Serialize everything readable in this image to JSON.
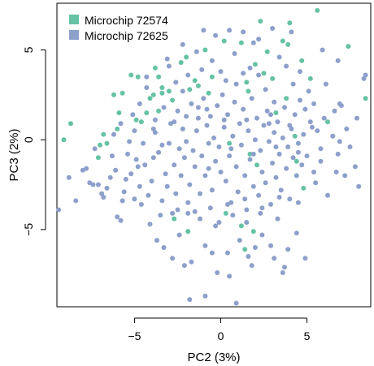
{
  "chart_data": {
    "type": "scatter",
    "xlabel": "PC2 (3%)",
    "ylabel": "PC3 (2%)",
    "xlim": [
      -9.5,
      8.7
    ],
    "ylim": [
      -9.3,
      7.6
    ],
    "xticks": [
      -5,
      0,
      5
    ],
    "xtick_labels": [
      "−5",
      "0",
      "5"
    ],
    "yticks": [
      -5,
      0,
      5
    ],
    "ytick_labels": [
      "−5",
      "0",
      "5"
    ],
    "legend_position": "top-left",
    "series": [
      {
        "name": "Microchip 72574",
        "color": "#66c2a5",
        "points": [
          [
            -9.1,
            0.0
          ],
          [
            -8.7,
            0.9
          ],
          [
            -7.0,
            -0.3
          ],
          [
            -6.6,
            -0.2
          ],
          [
            -7.1,
            -1.0
          ],
          [
            -6.8,
            0.3
          ],
          [
            -6.0,
            0.6
          ],
          [
            -5.9,
            1.5
          ],
          [
            -6.2,
            2.5
          ],
          [
            -5.7,
            2.6
          ],
          [
            -5.2,
            3.6
          ],
          [
            -4.8,
            3.5
          ],
          [
            -4.6,
            1.0
          ],
          [
            -4.3,
            1.5
          ],
          [
            -4.1,
            2.3
          ],
          [
            -3.9,
            2.5
          ],
          [
            -3.8,
            4.0
          ],
          [
            -3.6,
            3.5
          ],
          [
            -3.4,
            2.6
          ],
          [
            -3.6,
            1.6
          ],
          [
            -3.0,
            2.7
          ],
          [
            -2.8,
            2.2
          ],
          [
            -2.3,
            4.3
          ],
          [
            -2.0,
            4.6
          ],
          [
            -1.8,
            2.8
          ],
          [
            -1.5,
            3.3
          ],
          [
            -1.3,
            3.0
          ],
          [
            -0.9,
            5.0
          ],
          [
            -0.5,
            3.5
          ],
          [
            -0.7,
            2.6
          ],
          [
            0.2,
            5.5
          ],
          [
            1.2,
            5.4
          ],
          [
            1.5,
            3.2
          ],
          [
            1.6,
            2.7
          ],
          [
            2.0,
            4.2
          ],
          [
            2.3,
            6.6
          ],
          [
            2.5,
            3.7
          ],
          [
            3.0,
            3.4
          ],
          [
            3.2,
            1.5
          ],
          [
            3.6,
            5.5
          ],
          [
            3.9,
            5.3
          ],
          [
            4.0,
            6.5
          ],
          [
            4.7,
            4.4
          ],
          [
            5.2,
            3.4
          ],
          [
            5.6,
            7.2
          ],
          [
            4.3,
            0.2
          ],
          [
            4.4,
            -1.2
          ],
          [
            4.8,
            -2.7
          ],
          [
            6.2,
            1.0
          ],
          [
            7.4,
            5.2
          ],
          [
            8.4,
            2.3
          ],
          [
            2.1,
            -1.4
          ],
          [
            1.7,
            -0.8
          ],
          [
            0.5,
            -0.2
          ],
          [
            -2.7,
            -4.4
          ],
          [
            0.3,
            -4.1
          ],
          [
            1.2,
            -4.8
          ],
          [
            1.9,
            -5.1
          ],
          [
            1.4,
            -6.1
          ],
          [
            -1.9,
            -5.1
          ],
          [
            -3.4,
            2.9
          ],
          [
            -4.9,
            1.1
          ],
          [
            2.7,
            4.9
          ],
          [
            3.8,
            2.3
          ]
        ]
      },
      {
        "name": "Microchip 72625",
        "color": "#8da0cb",
        "points": [
          [
            -9.4,
            -3.9
          ],
          [
            -8.4,
            -3.4
          ],
          [
            -7.8,
            -1.6
          ],
          [
            -7.4,
            -2.5
          ],
          [
            -7.1,
            -2.5
          ],
          [
            -6.8,
            -3.2
          ],
          [
            -6.4,
            -2.1
          ],
          [
            -6.1,
            -1.7
          ],
          [
            -6.0,
            -4.3
          ],
          [
            -5.7,
            -3.4
          ],
          [
            -5.5,
            -2.2
          ],
          [
            -5.4,
            -0.8
          ],
          [
            -5.2,
            -1.9
          ],
          [
            -5.0,
            -3.3
          ],
          [
            -4.8,
            -1.5
          ],
          [
            -4.7,
            -2.6
          ],
          [
            -4.5,
            -0.2
          ],
          [
            -4.4,
            -1.4
          ],
          [
            -4.2,
            -3.1
          ],
          [
            -4.0,
            -2.3
          ],
          [
            -3.9,
            -1.0
          ],
          [
            -3.8,
            0.4
          ],
          [
            -3.6,
            -0.7
          ],
          [
            -3.4,
            -3.4
          ],
          [
            -3.2,
            -1.9
          ],
          [
            -3.1,
            -2.6
          ],
          [
            -3.0,
            -0.2
          ],
          [
            -2.9,
            0.9
          ],
          [
            -2.8,
            -4.1
          ],
          [
            -2.7,
            -1.4
          ],
          [
            -2.6,
            -3.0
          ],
          [
            -2.5,
            1.6
          ],
          [
            -2.4,
            -0.5
          ],
          [
            -2.3,
            -2.0
          ],
          [
            -2.2,
            0.6
          ],
          [
            -2.1,
            -1.0
          ],
          [
            -2.0,
            1.3
          ],
          [
            -1.9,
            -3.5
          ],
          [
            -1.8,
            -2.5
          ],
          [
            -1.7,
            2.0
          ],
          [
            -1.6,
            -0.6
          ],
          [
            -1.5,
            -1.5
          ],
          [
            -1.4,
            0.5
          ],
          [
            -1.3,
            1.8
          ],
          [
            -1.2,
            -3.0
          ],
          [
            -1.1,
            -0.9
          ],
          [
            -1.0,
            2.3
          ],
          [
            -0.9,
            -2.0
          ],
          [
            -0.8,
            0.8
          ],
          [
            -0.7,
            -1.6
          ],
          [
            -0.6,
            1.3
          ],
          [
            -0.5,
            -2.8
          ],
          [
            -0.4,
            0.1
          ],
          [
            -0.3,
            -1.2
          ],
          [
            -0.2,
            1.9
          ],
          [
            -0.1,
            -0.4
          ],
          [
            0.0,
            -1.8
          ],
          [
            0.1,
            2.5
          ],
          [
            0.2,
            0.7
          ],
          [
            0.3,
            -2.3
          ],
          [
            0.4,
            1.4
          ],
          [
            0.5,
            -0.9
          ],
          [
            0.6,
            -3.5
          ],
          [
            0.7,
            0.2
          ],
          [
            0.8,
            2.1
          ],
          [
            0.9,
            -1.5
          ],
          [
            1.0,
            -2.9
          ],
          [
            1.1,
            0.9
          ],
          [
            1.2,
            -0.3
          ],
          [
            1.3,
            1.7
          ],
          [
            1.4,
            -2.0
          ],
          [
            1.5,
            -3.9
          ],
          [
            1.6,
            0.5
          ],
          [
            1.7,
            -1.1
          ],
          [
            1.8,
            2.3
          ],
          [
            1.9,
            -2.6
          ],
          [
            2.0,
            0.0
          ],
          [
            2.1,
            1.2
          ],
          [
            2.2,
            -3.1
          ],
          [
            2.3,
            -0.6
          ],
          [
            2.4,
            -1.8
          ],
          [
            2.5,
            0.8
          ],
          [
            2.6,
            -2.4
          ],
          [
            2.7,
            1.6
          ],
          [
            2.8,
            -0.1
          ],
          [
            2.9,
            -3.6
          ],
          [
            3.0,
            -1.3
          ],
          [
            3.1,
            0.4
          ],
          [
            3.2,
            -2.1
          ],
          [
            3.3,
            1.0
          ],
          [
            3.4,
            -0.8
          ],
          [
            3.5,
            -2.8
          ],
          [
            3.6,
            0.1
          ],
          [
            3.7,
            1.8
          ],
          [
            3.8,
            -1.6
          ],
          [
            3.9,
            -0.4
          ],
          [
            4.0,
            -3.3
          ],
          [
            4.1,
            0.6
          ],
          [
            4.2,
            -1.0
          ],
          [
            4.3,
            1.4
          ],
          [
            4.4,
            -2.0
          ],
          [
            4.5,
            -0.2
          ],
          [
            4.6,
            2.2
          ],
          [
            4.7,
            -1.4
          ],
          [
            4.8,
            0.3
          ],
          [
            5.0,
            -0.9
          ],
          [
            5.2,
            1.0
          ],
          [
            5.4,
            -1.8
          ],
          [
            5.6,
            0.5
          ],
          [
            5.8,
            -0.5
          ],
          [
            6.0,
            1.2
          ],
          [
            6.2,
            -3.1
          ],
          [
            6.5,
            0.2
          ],
          [
            6.8,
            -0.8
          ],
          [
            7.0,
            1.9
          ],
          [
            7.2,
            -2.0
          ],
          [
            7.5,
            -0.4
          ],
          [
            7.8,
            -1.5
          ],
          [
            8.0,
            -2.6
          ],
          [
            8.3,
            3.4
          ],
          [
            -8.0,
            -1.7
          ],
          [
            -6.9,
            -3.0
          ],
          [
            -5.8,
            -4.5
          ],
          [
            -5.3,
            -0.1
          ],
          [
            -4.1,
            -4.7
          ],
          [
            -3.7,
            -5.6
          ],
          [
            -2.4,
            -5.3
          ],
          [
            -1.7,
            -6.8
          ],
          [
            -0.9,
            -5.9
          ],
          [
            -0.2,
            -7.4
          ],
          [
            0.4,
            -6.3
          ],
          [
            1.1,
            -5.6
          ],
          [
            1.8,
            -7.0
          ],
          [
            2.4,
            -5.3
          ],
          [
            3.1,
            -6.6
          ],
          [
            3.7,
            -7.1
          ],
          [
            4.4,
            -5.2
          ],
          [
            4.9,
            -6.6
          ],
          [
            -0.1,
            -4.6
          ],
          [
            0.7,
            -4.2
          ],
          [
            1.5,
            -4.6
          ],
          [
            2.3,
            -4.1
          ],
          [
            -1.2,
            -4.4
          ],
          [
            -1.9,
            -4.1
          ],
          [
            -2.8,
            -6.6
          ],
          [
            -1.8,
            -8.9
          ],
          [
            0.5,
            -7.6
          ],
          [
            -0.3,
            -4.8
          ],
          [
            3.3,
            -4.4
          ],
          [
            2.0,
            -6.0
          ],
          [
            -8.8,
            -2.1
          ],
          [
            -3.0,
            4.1
          ],
          [
            -1.1,
            3.9
          ],
          [
            -0.5,
            4.4
          ],
          [
            0.8,
            4.8
          ],
          [
            1.7,
            4.0
          ],
          [
            2.6,
            2.8
          ],
          [
            3.4,
            4.6
          ],
          [
            4.2,
            3.1
          ],
          [
            5.1,
            2.7
          ],
          [
            6.6,
            1.6
          ],
          [
            7.9,
            1.2
          ],
          [
            -4.7,
            2.0
          ],
          [
            -3.8,
            1.1
          ],
          [
            -2.6,
            3.2
          ],
          [
            -1.9,
            3.6
          ],
          [
            0.3,
            3.3
          ],
          [
            1.3,
            3.7
          ],
          [
            2.2,
            3.6
          ],
          [
            3.1,
            2.1
          ],
          [
            4.6,
            3.8
          ],
          [
            5.4,
            2.0
          ],
          [
            6.9,
            2.0
          ],
          [
            8.4,
            3.6
          ],
          [
            -5.8,
            0.9
          ],
          [
            -6.3,
            -0.9
          ],
          [
            -7.3,
            -0.5
          ],
          [
            -5.0,
            0.5
          ],
          [
            -4.3,
            2.9
          ],
          [
            -3.3,
            1.8
          ],
          [
            -2.2,
            2.7
          ],
          [
            -1.4,
            4.9
          ],
          [
            -0.8,
            1.7
          ],
          [
            0.0,
            3.8
          ],
          [
            0.9,
            3.1
          ],
          [
            1.9,
            5.4
          ],
          [
            2.9,
            1.4
          ],
          [
            3.8,
            4.1
          ],
          [
            4.9,
            1.7
          ],
          [
            6.1,
            3.1
          ],
          [
            7.3,
            0.6
          ],
          [
            -7.6,
            -2.4
          ],
          [
            -6.6,
            -2.7
          ],
          [
            -5.6,
            -2.9
          ],
          [
            -4.6,
            -3.6
          ],
          [
            -3.5,
            -4.2
          ],
          [
            -2.5,
            -3.9
          ],
          [
            -1.5,
            -4.0
          ],
          [
            -0.6,
            -3.8
          ],
          [
            0.4,
            -3.6
          ],
          [
            1.4,
            -3.3
          ],
          [
            2.4,
            -3.8
          ],
          [
            3.4,
            -3.2
          ],
          [
            4.5,
            -3.5
          ],
          [
            5.5,
            -2.4
          ],
          [
            6.7,
            -1.8
          ],
          [
            -4.9,
            -1.1
          ],
          [
            -3.4,
            -0.3
          ],
          [
            -2.0,
            -0.1
          ],
          [
            -0.7,
            -0.2
          ],
          [
            0.6,
            -0.5
          ],
          [
            1.9,
            -0.8
          ],
          [
            3.2,
            -0.4
          ],
          [
            4.5,
            -0.7
          ],
          [
            5.8,
            -1.2
          ],
          [
            6.9,
            -0.1
          ],
          [
            -6.2,
            0.3
          ],
          [
            -5.1,
            1.4
          ],
          [
            -3.9,
            0.6
          ],
          [
            -2.7,
            1.0
          ],
          [
            -1.3,
            1.2
          ],
          [
            0.2,
            1.1
          ],
          [
            1.5,
            1.1
          ],
          [
            2.8,
            0.9
          ],
          [
            4.0,
            0.8
          ],
          [
            5.3,
            0.7
          ],
          [
            -1.0,
            6.1
          ],
          [
            -0.3,
            5.8
          ],
          [
            0.5,
            6.1
          ],
          [
            1.3,
            6.0
          ],
          [
            2.2,
            5.6
          ],
          [
            3.0,
            6.2
          ],
          [
            -2.2,
            5.3
          ],
          [
            -3.1,
            4.5
          ],
          [
            -4.3,
            3.5
          ],
          [
            4.1,
            6.0
          ],
          [
            5.9,
            5.0
          ],
          [
            6.8,
            4.4
          ],
          [
            0.9,
            -9.1
          ],
          [
            -0.9,
            -8.7
          ],
          [
            1.6,
            -6.5
          ],
          [
            3.6,
            -7.4
          ],
          [
            -0.5,
            -6.3
          ],
          [
            2.9,
            -5.9
          ],
          [
            -2.1,
            -7.0
          ],
          [
            -3.3,
            -6.0
          ],
          [
            3.9,
            -6.1
          ]
        ]
      }
    ]
  }
}
